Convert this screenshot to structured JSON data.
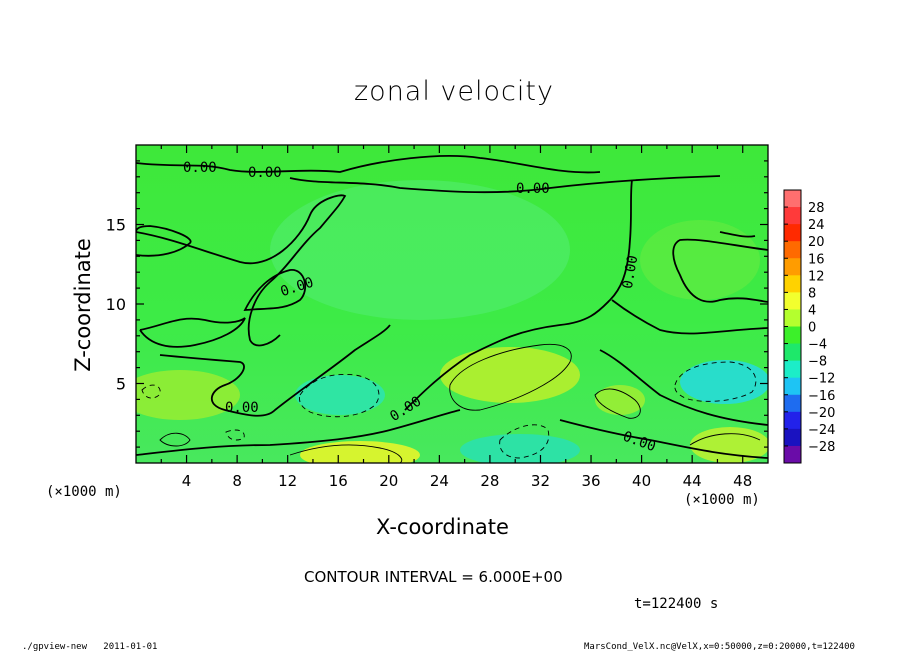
{
  "chart_data": {
    "type": "heatmap",
    "title": "zonal velocity",
    "xlabel": "X-coordinate",
    "ylabel": "Z-coordinate",
    "x_unit_left": "(×1000 m)",
    "x_unit_right": "(×1000 m)",
    "xlim": [
      0,
      50
    ],
    "ylim": [
      0,
      20
    ],
    "x_ticks": [
      4,
      8,
      12,
      16,
      20,
      24,
      28,
      32,
      36,
      40,
      44,
      48
    ],
    "y_ticks": [
      5,
      10,
      15
    ],
    "contour_label": "0.00",
    "contour_interval_text": "CONTOUR INTERVAL = 6.000E+00",
    "time_text": "t=122400 s",
    "colorbar": {
      "levels": [
        28,
        24,
        20,
        16,
        12,
        8,
        4,
        0,
        -4,
        -8,
        -12,
        -16,
        -20,
        -24,
        -28
      ],
      "colors": [
        "#ff6f6f",
        "#ff3a3a",
        "#ff2a00",
        "#ff6a00",
        "#ff9c00",
        "#ffd200",
        "#f2ff2e",
        "#b4ff2e",
        "#3cf02a",
        "#1ee86a",
        "#1cedc8",
        "#1ec4f4",
        "#1e6cf0",
        "#2222ea",
        "#1a12c0",
        "#6a0ca8"
      ]
    }
  },
  "footer": {
    "left": "./gpview-new   2011-01-01",
    "right": "MarsCond_VelX.nc@VelX,x=0:50000,z=0:20000,t=122400"
  }
}
